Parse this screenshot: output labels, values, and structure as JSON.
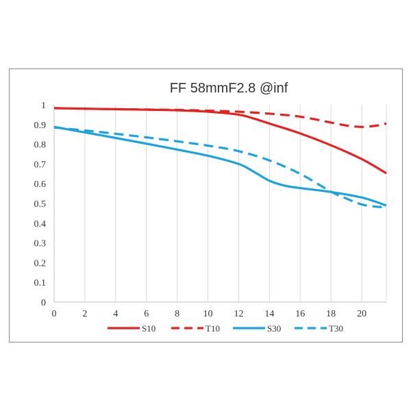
{
  "chart_data": {
    "type": "line",
    "title": "FF 58mmF2.8 @inf",
    "xlabel": "",
    "ylabel": "",
    "xlim": [
      0,
      21.6
    ],
    "ylim": [
      0,
      1
    ],
    "x_ticks": [
      "0",
      "2",
      "4",
      "6",
      "8",
      "10",
      "12",
      "14",
      "16",
      "18",
      "20"
    ],
    "y_ticks": [
      "0",
      "0.1",
      "0.2",
      "0.3",
      "0.4",
      "0.5",
      "0.6",
      "0.7",
      "0.8",
      "0.9",
      "1"
    ],
    "grid": "vertical",
    "legend_position": "bottom",
    "series": [
      {
        "name": "S10",
        "color": "#e8201e",
        "dash": "solid",
        "points": [
          [
            0,
            0.983
          ],
          [
            2,
            0.98
          ],
          [
            4,
            0.978
          ],
          [
            6,
            0.975
          ],
          [
            8,
            0.972
          ],
          [
            10,
            0.965
          ],
          [
            12,
            0.95
          ],
          [
            13,
            0.93
          ],
          [
            14,
            0.905
          ],
          [
            16,
            0.855
          ],
          [
            18,
            0.795
          ],
          [
            20,
            0.725
          ],
          [
            21.6,
            0.653
          ]
        ]
      },
      {
        "name": "T10",
        "color": "#e8201e",
        "dash": "dashed",
        "points": [
          [
            0,
            0.983
          ],
          [
            2,
            0.98
          ],
          [
            4,
            0.978
          ],
          [
            6,
            0.976
          ],
          [
            8,
            0.974
          ],
          [
            10,
            0.97
          ],
          [
            12,
            0.965
          ],
          [
            14,
            0.955
          ],
          [
            16,
            0.94
          ],
          [
            18,
            0.91
          ],
          [
            19,
            0.895
          ],
          [
            20,
            0.888
          ],
          [
            21,
            0.895
          ],
          [
            21.6,
            0.905
          ]
        ]
      },
      {
        "name": "S30",
        "color": "#1aa3e0",
        "dash": "solid",
        "points": [
          [
            0,
            0.888
          ],
          [
            2,
            0.86
          ],
          [
            4,
            0.832
          ],
          [
            6,
            0.803
          ],
          [
            8,
            0.773
          ],
          [
            10,
            0.742
          ],
          [
            12,
            0.7
          ],
          [
            13,
            0.66
          ],
          [
            14,
            0.615
          ],
          [
            15,
            0.59
          ],
          [
            16,
            0.578
          ],
          [
            18,
            0.558
          ],
          [
            20,
            0.53
          ],
          [
            21.6,
            0.49
          ]
        ]
      },
      {
        "name": "T30",
        "color": "#1aa3e0",
        "dash": "dashed",
        "points": [
          [
            0,
            0.885
          ],
          [
            2,
            0.87
          ],
          [
            4,
            0.853
          ],
          [
            6,
            0.835
          ],
          [
            8,
            0.815
          ],
          [
            10,
            0.793
          ],
          [
            12,
            0.765
          ],
          [
            14,
            0.718
          ],
          [
            16,
            0.65
          ],
          [
            18,
            0.56
          ],
          [
            19,
            0.525
          ],
          [
            20,
            0.495
          ],
          [
            21,
            0.483
          ],
          [
            21.6,
            0.482
          ]
        ]
      }
    ]
  }
}
